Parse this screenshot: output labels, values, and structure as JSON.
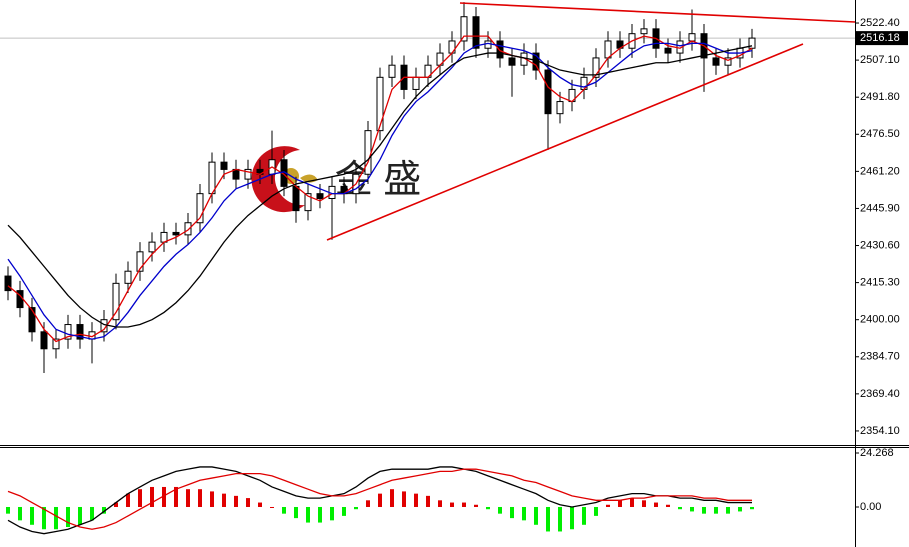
{
  "chart_data": [
    {
      "type": "candlestick",
      "open": [
        2418,
        2412,
        2405,
        2395,
        2388,
        2392,
        2398,
        2392,
        2395,
        2400,
        2415,
        2420,
        2428,
        2432,
        2436,
        2435,
        2440,
        2452,
        2465,
        2462,
        2458,
        2462,
        2460,
        2466,
        2455,
        2445,
        2452,
        2450,
        2455,
        2452,
        2460,
        2478,
        2500,
        2505,
        2495,
        2500,
        2505,
        2510,
        2515,
        2525,
        2512,
        2515,
        2508,
        2505,
        2510,
        2503,
        2485,
        2490,
        2495,
        2500,
        2508,
        2515,
        2512,
        2518,
        2520,
        2512,
        2510,
        2515,
        2518,
        2508,
        2505,
        2508,
        2512
      ],
      "high": [
        2422,
        2416,
        2409,
        2399,
        2396,
        2402,
        2402,
        2399,
        2404,
        2419,
        2424,
        2432,
        2436,
        2440,
        2440,
        2444,
        2456,
        2469,
        2469,
        2466,
        2466,
        2466,
        2478,
        2470,
        2459,
        2456,
        2456,
        2459,
        2459,
        2464,
        2482,
        2504,
        2509,
        2509,
        2504,
        2509,
        2514,
        2519,
        2531,
        2529,
        2519,
        2519,
        2512,
        2514,
        2514,
        2507,
        2494,
        2499,
        2504,
        2512,
        2519,
        2519,
        2522,
        2524,
        2524,
        2516,
        2519,
        2528,
        2522,
        2512,
        2512,
        2516,
        2520
      ],
      "low": [
        2408,
        2401,
        2391,
        2378,
        2384,
        2388,
        2388,
        2382,
        2391,
        2396,
        2411,
        2416,
        2424,
        2428,
        2431,
        2431,
        2436,
        2448,
        2458,
        2454,
        2454,
        2456,
        2456,
        2451,
        2440,
        2441,
        2446,
        2433,
        2448,
        2448,
        2456,
        2474,
        2496,
        2491,
        2491,
        2496,
        2501,
        2506,
        2511,
        2508,
        2508,
        2504,
        2492,
        2501,
        2499,
        2470,
        2481,
        2486,
        2491,
        2496,
        2504,
        2508,
        2508,
        2514,
        2508,
        2506,
        2506,
        2511,
        2494,
        2501,
        2501,
        2504,
        2508
      ],
      "close": [
        2412,
        2405,
        2395,
        2388,
        2392,
        2398,
        2392,
        2395,
        2400,
        2415,
        2420,
        2428,
        2432,
        2436,
        2435,
        2440,
        2452,
        2465,
        2462,
        2458,
        2462,
        2460,
        2466,
        2455,
        2445,
        2452,
        2450,
        2455,
        2452,
        2460,
        2478,
        2500,
        2505,
        2495,
        2500,
        2505,
        2510,
        2515,
        2525,
        2512,
        2515,
        2508,
        2505,
        2510,
        2503,
        2485,
        2490,
        2495,
        2500,
        2508,
        2515,
        2512,
        2518,
        2520,
        2512,
        2510,
        2515,
        2518,
        2508,
        2505,
        2508,
        2512,
        2516.18
      ],
      "series": [
        {
          "color": "#e00000",
          "values": [
            2414,
            2410,
            2404,
            2396,
            2391,
            2393,
            2394,
            2393,
            2396,
            2403,
            2412,
            2421,
            2427,
            2432,
            2434,
            2437,
            2442,
            2452,
            2460,
            2462,
            2461,
            2460,
            2463,
            2460,
            2455,
            2451,
            2449,
            2452,
            2452,
            2456,
            2465,
            2480,
            2495,
            2500,
            2500,
            2500,
            2505,
            2510,
            2517,
            2517,
            2517,
            2511,
            2509,
            2508,
            2505,
            2496,
            2492,
            2490,
            2495,
            2501,
            2508,
            2512,
            2515,
            2517,
            2516,
            2513,
            2512,
            2515,
            2513,
            2509,
            2507,
            2509,
            2512
          ]
        },
        {
          "color": "#0000cc",
          "values": [
            2425,
            2418,
            2410,
            2402,
            2396,
            2394,
            2393,
            2392,
            2393,
            2397,
            2403,
            2410,
            2416,
            2422,
            2427,
            2431,
            2436,
            2442,
            2449,
            2454,
            2456,
            2458,
            2460,
            2461,
            2458,
            2456,
            2454,
            2452,
            2452,
            2454,
            2458,
            2466,
            2476,
            2484,
            2490,
            2494,
            2499,
            2504,
            2510,
            2513,
            2514,
            2513,
            2512,
            2511,
            2509,
            2504,
            2500,
            2497,
            2496,
            2498,
            2502,
            2506,
            2510,
            2513,
            2514,
            2514,
            2513,
            2514,
            2514,
            2512,
            2510,
            2510,
            2511
          ]
        },
        {
          "color": "#000000",
          "values": [
            2439,
            2434,
            2428,
            2422,
            2416,
            2410,
            2405,
            2401,
            2398,
            2397,
            2397,
            2398,
            2400,
            2403,
            2407,
            2412,
            2418,
            2425,
            2432,
            2438,
            2443,
            2447,
            2451,
            2454,
            2456,
            2457,
            2458,
            2459,
            2460,
            2462,
            2466,
            2472,
            2479,
            2486,
            2492,
            2497,
            2501,
            2505,
            2508,
            2509,
            2510,
            2510,
            2509,
            2508,
            2507,
            2505,
            2503,
            2502,
            2501,
            2501,
            2502,
            2503,
            2504,
            2505,
            2506,
            2506,
            2507,
            2508,
            2509,
            2510,
            2511,
            2512,
            2513
          ]
        }
      ],
      "current_price": 2516.18,
      "watermark": "金 盛",
      "ylim": [
        2348.3,
        2531.9
      ],
      "yticks": [
        {
          "value": 2522.4,
          "label": "2522.40"
        },
        {
          "value": 2507.1,
          "label": "2507.10"
        },
        {
          "value": 2491.8,
          "label": "2491.80"
        },
        {
          "value": 2476.5,
          "label": "2476.50"
        },
        {
          "value": 2461.2,
          "label": "2461.20"
        },
        {
          "value": 2445.9,
          "label": "2445.90"
        },
        {
          "value": 2430.6,
          "label": "2430.60"
        },
        {
          "value": 2415.3,
          "label": "2415.30"
        },
        {
          "value": 2400,
          "label": "2400.00"
        },
        {
          "value": 2384.7,
          "label": "2384.70"
        },
        {
          "value": 2369.4,
          "label": "2369.40"
        },
        {
          "value": 2354.1,
          "label": "2354.10"
        }
      ]
    },
    {
      "type": "macd",
      "histogram": {
        "values": [
          -3,
          -6,
          -8,
          -10,
          -10,
          -9,
          -8,
          -6,
          -3,
          2,
          6,
          8,
          9,
          9,
          9,
          8,
          8,
          7,
          6,
          5,
          4,
          2,
          0,
          -3,
          -5,
          -7,
          -7,
          -6,
          -4,
          -1,
          3,
          6,
          8,
          7,
          6,
          5,
          3,
          2,
          2,
          1,
          -1,
          -3,
          -5,
          -6,
          -8,
          -11,
          -11,
          -10,
          -8,
          -4,
          1,
          3,
          4,
          3,
          2,
          1,
          -1,
          -2,
          -3,
          -3,
          -3,
          -2,
          -1
        ],
        "up_color": "#e00000",
        "down_color": "#00ee00"
      },
      "series": [
        {
          "color": "#000000",
          "values": [
            -6,
            -9,
            -11,
            -12,
            -11,
            -10,
            -8,
            -6,
            -2,
            2,
            6,
            9,
            12,
            14,
            16,
            17,
            18,
            18,
            17,
            16,
            14,
            12,
            9,
            7,
            5,
            4,
            4,
            5,
            6,
            9,
            13,
            16,
            17,
            17,
            17,
            17,
            18,
            18,
            17,
            16,
            14,
            12,
            10,
            8,
            6,
            3,
            1,
            0,
            1,
            2,
            4,
            5,
            6,
            6,
            5,
            5,
            4,
            4,
            3,
            3,
            2,
            2,
            2
          ]
        },
        {
          "color": "#e00000",
          "values": [
            7,
            5,
            2,
            -1,
            -4,
            -7,
            -9,
            -10,
            -9,
            -7,
            -4,
            -1,
            2,
            5,
            8,
            10,
            12,
            13,
            14,
            15,
            15,
            15,
            14,
            12,
            10,
            8,
            6,
            5,
            5,
            6,
            8,
            10,
            12,
            13,
            14,
            15,
            16,
            16,
            17,
            17,
            16,
            15,
            14,
            12,
            11,
            9,
            7,
            5,
            4,
            3,
            3,
            3,
            4,
            4,
            5,
            5,
            5,
            5,
            4,
            4,
            3,
            3,
            3
          ]
        }
      ],
      "ylim": [
        -17.98,
        26.96
      ],
      "yticks": [
        24.268,
        {
          "value": 0,
          "label": "0.00"
        }
      ]
    }
  ]
}
